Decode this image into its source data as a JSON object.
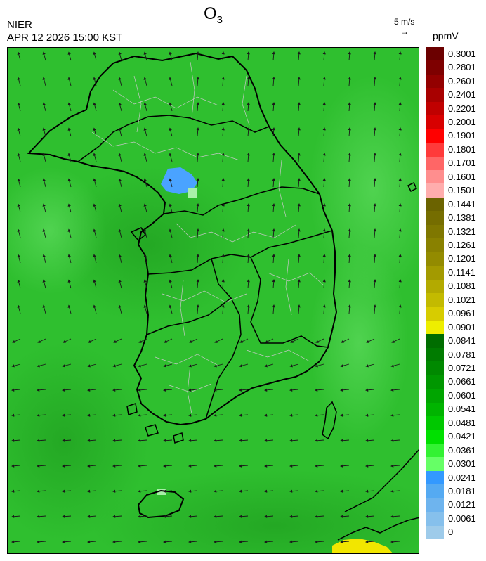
{
  "header": {
    "species": "O",
    "species_sub": "3",
    "agency": "NIER",
    "timestamp": "APR 12 2026 15:00 KST",
    "wind_reference": "5 m/s",
    "wind_reference_arrow": "→",
    "unit": "ppmV"
  },
  "colorbar": {
    "labels": [
      "0.3001",
      "0.2801",
      "0.2601",
      "0.2401",
      "0.2201",
      "0.2001",
      "0.1901",
      "0.1801",
      "0.1701",
      "0.1601",
      "0.1501",
      "0.1441",
      "0.1381",
      "0.1321",
      "0.1261",
      "0.1201",
      "0.1141",
      "0.1081",
      "0.1021",
      "0.0961",
      "0.0901",
      "0.0841",
      "0.0781",
      "0.0721",
      "0.0661",
      "0.0601",
      "0.0541",
      "0.0481",
      "0.0421",
      "0.0361",
      "0.0301",
      "0.0241",
      "0.0181",
      "0.0121",
      "0.0061",
      "0"
    ],
    "colors": [
      "#6b0000",
      "#7e0000",
      "#930000",
      "#a80000",
      "#c00000",
      "#d80000",
      "#ff0000",
      "#ff3a3a",
      "#ff6666",
      "#ff8e8e",
      "#ffadad",
      "#6b6300",
      "#756d00",
      "#7f7700",
      "#898100",
      "#938b00",
      "#a39a00",
      "#b3aa00",
      "#c3ba00",
      "#d7cc00",
      "#eeee00",
      "#006d00",
      "#007b00",
      "#008900",
      "#009700",
      "#00a500",
      "#00b400",
      "#00c800",
      "#00e000",
      "#33f233",
      "#66ff66",
      "#3399ff",
      "#55aaf2",
      "#6eb4ee",
      "#86c0ec",
      "#9ecbea"
    ]
  },
  "map": {
    "base_color": "#2fbf2f",
    "low_ozone_color": "#4aa3ff",
    "high_ozone_color": "#f2e600",
    "boundary_color": "#000000",
    "district_color": "#c8c8c8",
    "arrow_color": "#1a1a1a"
  }
}
